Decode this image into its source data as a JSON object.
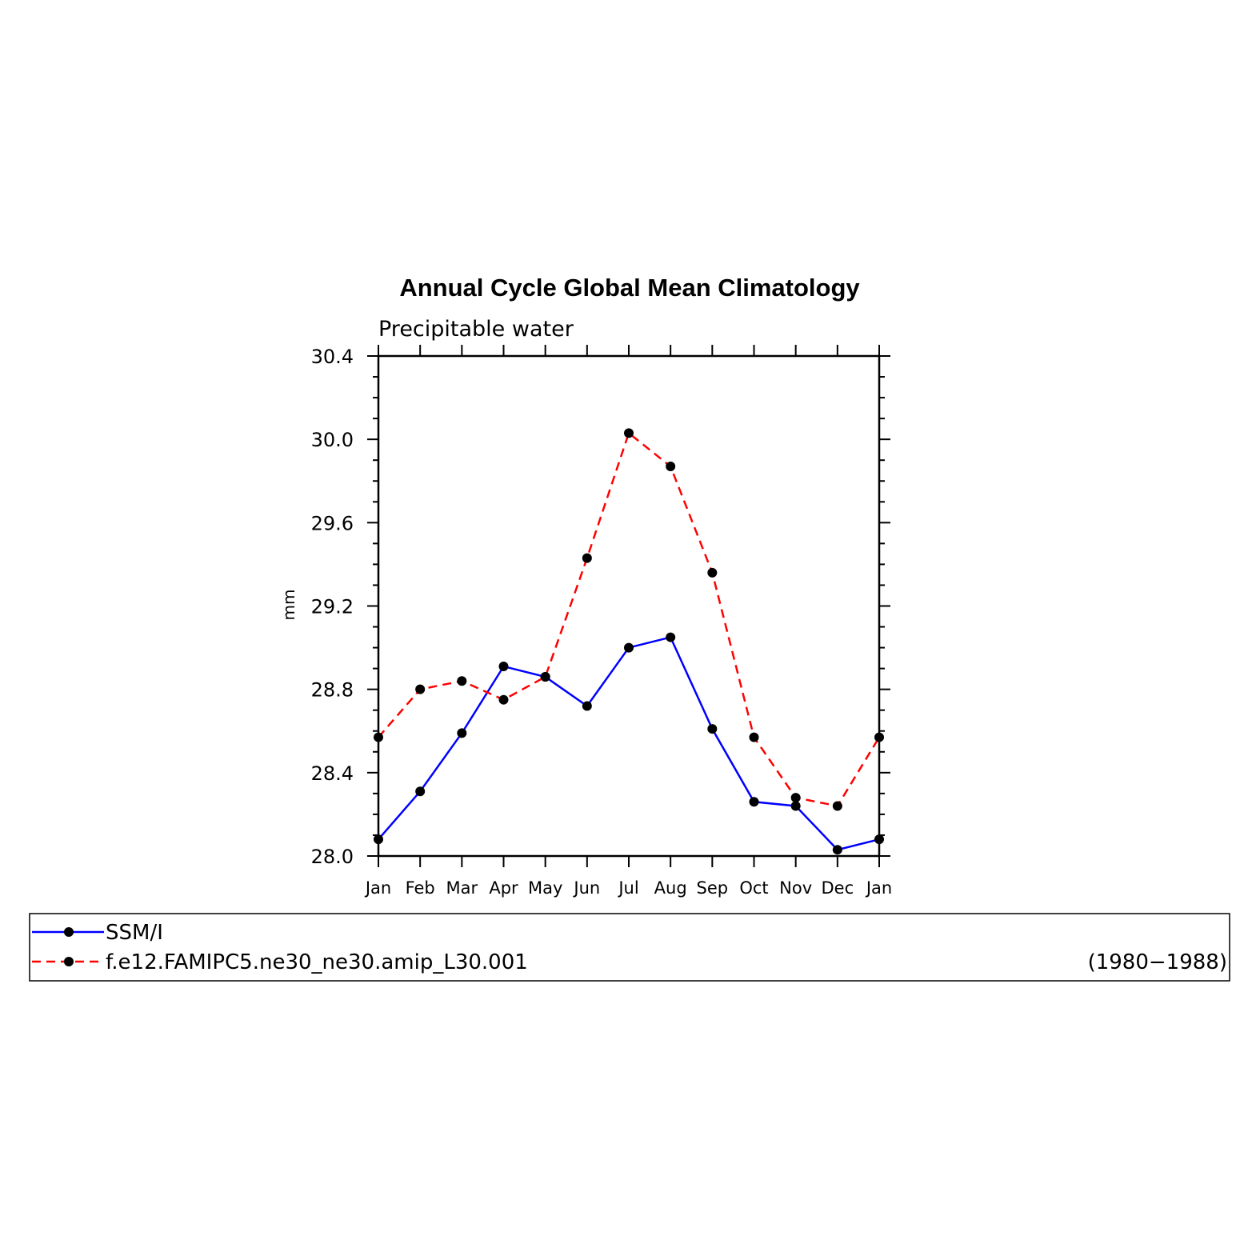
{
  "chart_data": {
    "type": "line",
    "title": "Annual Cycle Global Mean Climatology",
    "subtitle": "Precipitable water",
    "ylabel": "mm",
    "xlabel": "",
    "ylim": [
      28.0,
      30.4
    ],
    "yticks": [
      "28.0",
      "28.4",
      "28.8",
      "29.2",
      "29.6",
      "30.0",
      "30.4"
    ],
    "categories": [
      "Jan",
      "Feb",
      "Mar",
      "Apr",
      "May",
      "Jun",
      "Jul",
      "Aug",
      "Sep",
      "Oct",
      "Nov",
      "Dec",
      "Jan"
    ],
    "grid": false,
    "legend_position": "bottom",
    "legend_note": "(1980−1988)",
    "series": [
      {
        "name": "SSM/I",
        "color": "#0000ff",
        "dashed": false,
        "values": [
          28.08,
          28.31,
          28.59,
          28.91,
          28.86,
          28.72,
          29.0,
          29.05,
          28.61,
          28.26,
          28.24,
          28.03,
          28.08
        ]
      },
      {
        "name": "f.e12.FAMIPC5.ne30_ne30.amip_L30.001",
        "color": "#ff0000",
        "dashed": true,
        "values": [
          28.57,
          28.8,
          28.84,
          28.75,
          28.86,
          29.43,
          30.03,
          29.87,
          29.36,
          28.57,
          28.28,
          28.24,
          28.57
        ]
      }
    ]
  }
}
